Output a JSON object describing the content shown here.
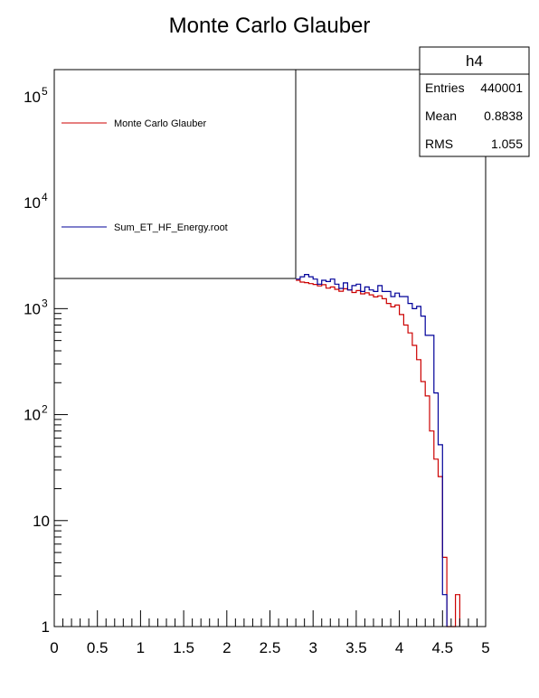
{
  "chart_data": {
    "type": "step-histogram",
    "title": "Monte Carlo Glauber",
    "xlabel": "",
    "ylabel": "",
    "x_range": [
      0,
      5
    ],
    "y_range": [
      1,
      180000
    ],
    "y_scale": "log",
    "x_ticks": [
      "0",
      "0.5",
      "1",
      "1.5",
      "2",
      "2.5",
      "3",
      "3.5",
      "4",
      "4.5",
      "5"
    ],
    "y_ticks": [
      {
        "value": 1,
        "label": "1"
      },
      {
        "value": 10,
        "label": "10"
      },
      {
        "value": 100,
        "label": "10",
        "exp": "2"
      },
      {
        "value": 1000,
        "label": "10",
        "exp": "3"
      },
      {
        "value": 10000,
        "label": "10",
        "exp": "4"
      },
      {
        "value": 100000,
        "label": "10",
        "exp": "5"
      }
    ],
    "grid": false,
    "legend": {
      "placement": "top-left",
      "entries": [
        {
          "name": "Monte Carlo Glauber",
          "color": "#cc0000"
        },
        {
          "name": "Sum_ET_HF_Energy.root",
          "color": "#000099"
        }
      ]
    },
    "stats_box": {
      "placement": "top-right",
      "name": "h4",
      "rows": [
        {
          "label": "Entries",
          "value": "440001"
        },
        {
          "label": "Mean",
          "value": "0.8838"
        },
        {
          "label": "RMS",
          "value": "1.055"
        }
      ]
    },
    "bin_width": 0.05,
    "series": [
      {
        "name": "Monte Carlo Glauber",
        "color": "#cc0000",
        "x": [
          2.8,
          2.85,
          2.9,
          2.95,
          3.0,
          3.05,
          3.1,
          3.15,
          3.2,
          3.25,
          3.3,
          3.35,
          3.4,
          3.45,
          3.5,
          3.55,
          3.6,
          3.65,
          3.7,
          3.75,
          3.8,
          3.85,
          3.9,
          3.95,
          4.0,
          4.05,
          4.1,
          4.15,
          4.2,
          4.25,
          4.3,
          4.35,
          4.4,
          4.45,
          4.5,
          4.55,
          4.6,
          4.65
        ],
        "values": [
          1850,
          1780,
          1760,
          1720,
          1690,
          1640,
          1680,
          1560,
          1600,
          1520,
          1460,
          1540,
          1500,
          1420,
          1480,
          1380,
          1410,
          1350,
          1290,
          1320,
          1240,
          1120,
          1040,
          1080,
          880,
          700,
          590,
          450,
          330,
          205,
          150,
          70,
          38,
          26,
          4.5,
          1,
          1,
          2
        ]
      },
      {
        "name": "Sum_ET_HF_Energy.root",
        "color": "#000099",
        "x": [
          2.8,
          2.85,
          2.9,
          2.95,
          3.0,
          3.05,
          3.1,
          3.15,
          3.2,
          3.25,
          3.3,
          3.35,
          3.4,
          3.45,
          3.5,
          3.55,
          3.6,
          3.65,
          3.7,
          3.75,
          3.8,
          3.85,
          3.9,
          3.95,
          4.0,
          4.05,
          4.1,
          4.15,
          4.2,
          4.25,
          4.3,
          4.35,
          4.4,
          4.45,
          4.5
        ],
        "values": [
          1900,
          2000,
          2100,
          2000,
          1900,
          1700,
          1850,
          1800,
          1900,
          1700,
          1550,
          1750,
          1500,
          1650,
          1700,
          1450,
          1600,
          1500,
          1450,
          1650,
          1450,
          1450,
          1300,
          1400,
          1300,
          1300,
          1120,
          1000,
          1050,
          850,
          560,
          560,
          160,
          52,
          2
        ]
      }
    ]
  }
}
